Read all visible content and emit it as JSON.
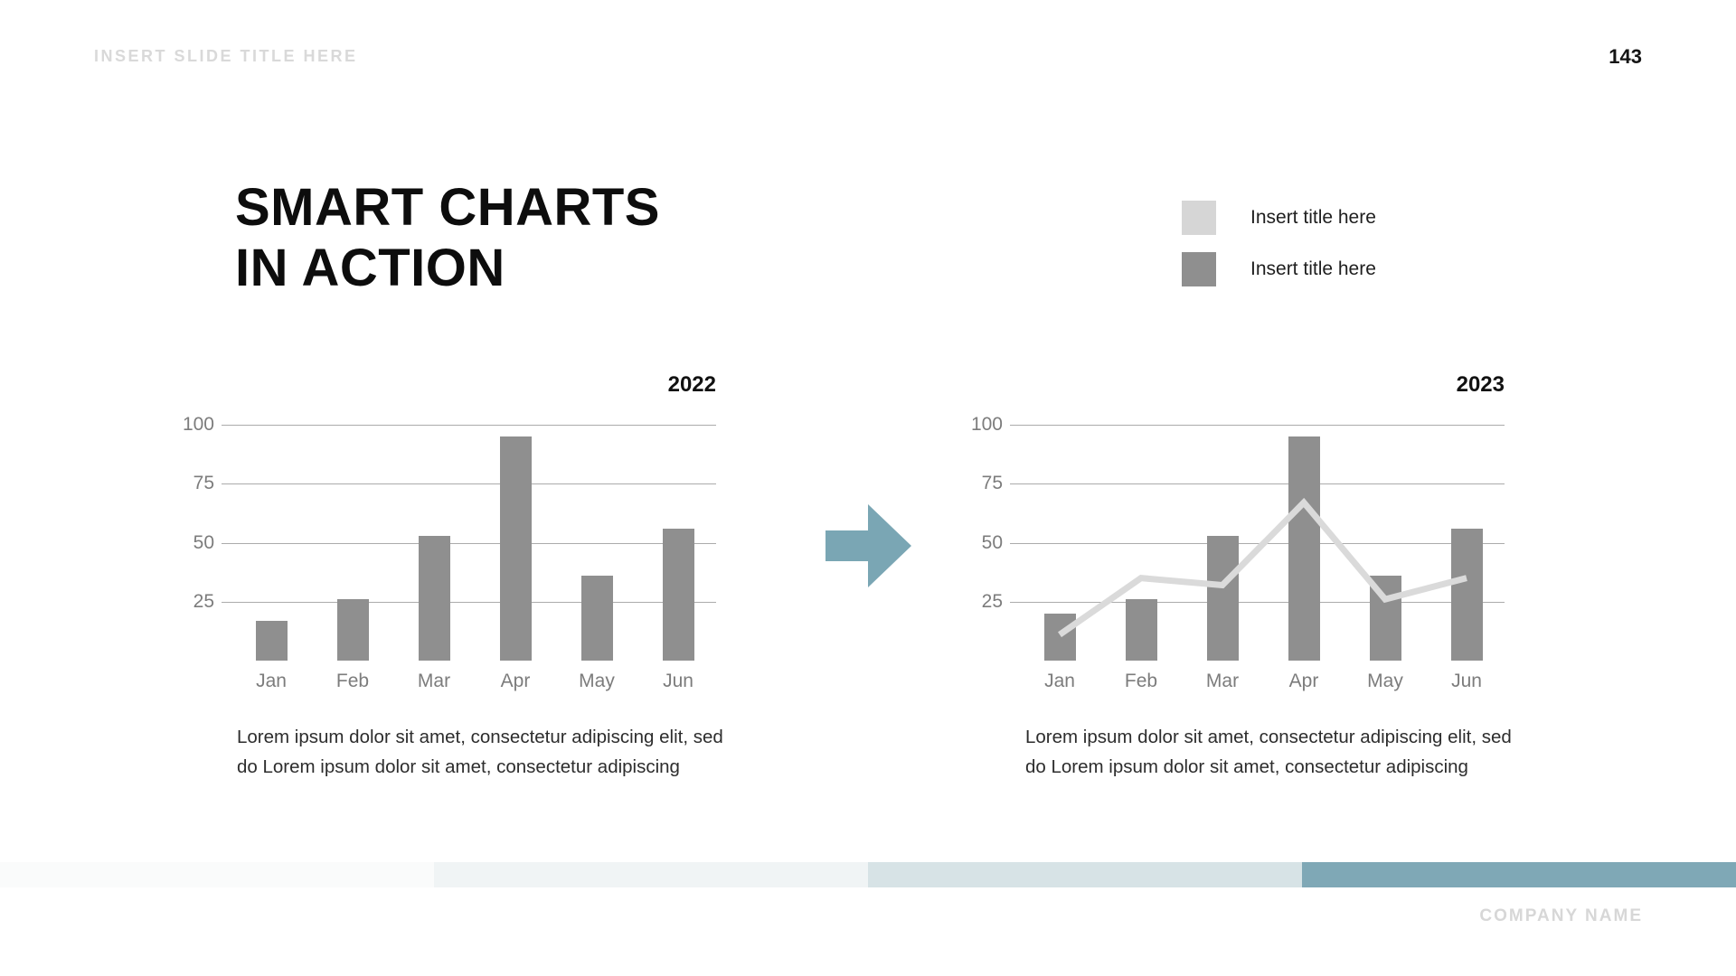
{
  "header": {
    "slide_title_placeholder": "INSERT SLIDE TITLE HERE",
    "page_number": "143"
  },
  "title": {
    "line1": "SMART CHARTS",
    "line2": "IN ACTION"
  },
  "legend": {
    "items": [
      {
        "label": "Insert title here",
        "color": "#d6d6d6"
      },
      {
        "label": "Insert title here",
        "color": "#8f8f8f"
      }
    ]
  },
  "chart_data": [
    {
      "type": "bar",
      "title": "2022",
      "categories": [
        "Jan",
        "Feb",
        "Mar",
        "Apr",
        "May",
        "Jun"
      ],
      "series": [
        {
          "name": "Insert title here",
          "type": "bar",
          "values": [
            17,
            26,
            53,
            95,
            36,
            56
          ],
          "color": "#8f8f8f"
        }
      ],
      "yticks": [
        25,
        50,
        75,
        100
      ],
      "ylim": [
        0,
        100
      ],
      "grid": true,
      "legend_position": "top-right-of-slide",
      "caption": [
        "Lorem ipsum dolor sit amet, consectetur adipiscing elit, sed",
        "do Lorem ipsum dolor sit amet, consectetur adipiscing"
      ]
    },
    {
      "type": "bar",
      "title": "2023",
      "categories": [
        "Jan",
        "Feb",
        "Mar",
        "Apr",
        "May",
        "Jun"
      ],
      "series": [
        {
          "name": "Insert title here",
          "type": "bar",
          "values": [
            20,
            26,
            53,
            95,
            36,
            56
          ],
          "color": "#8f8f8f"
        },
        {
          "name": "Insert title here",
          "type": "line",
          "values": [
            11,
            35,
            32,
            67,
            26,
            35
          ],
          "color": "#dadada"
        }
      ],
      "yticks": [
        25,
        50,
        75,
        100
      ],
      "ylim": [
        0,
        100
      ],
      "grid": true,
      "legend_position": "top-right-of-slide",
      "caption": [
        "Lorem ipsum dolor sit amet, consectetur adipiscing elit, sed",
        "do Lorem ipsum dolor sit amet, consectetur adipiscing"
      ]
    }
  ],
  "arrow": {
    "color": "#7aa6b4",
    "direction": "right"
  },
  "footer": {
    "company_name": "COMPANY NAME",
    "stripe_colors": [
      "#fafbfb",
      "#f0f4f5",
      "#d7e3e6",
      "#7fa8b6"
    ]
  }
}
